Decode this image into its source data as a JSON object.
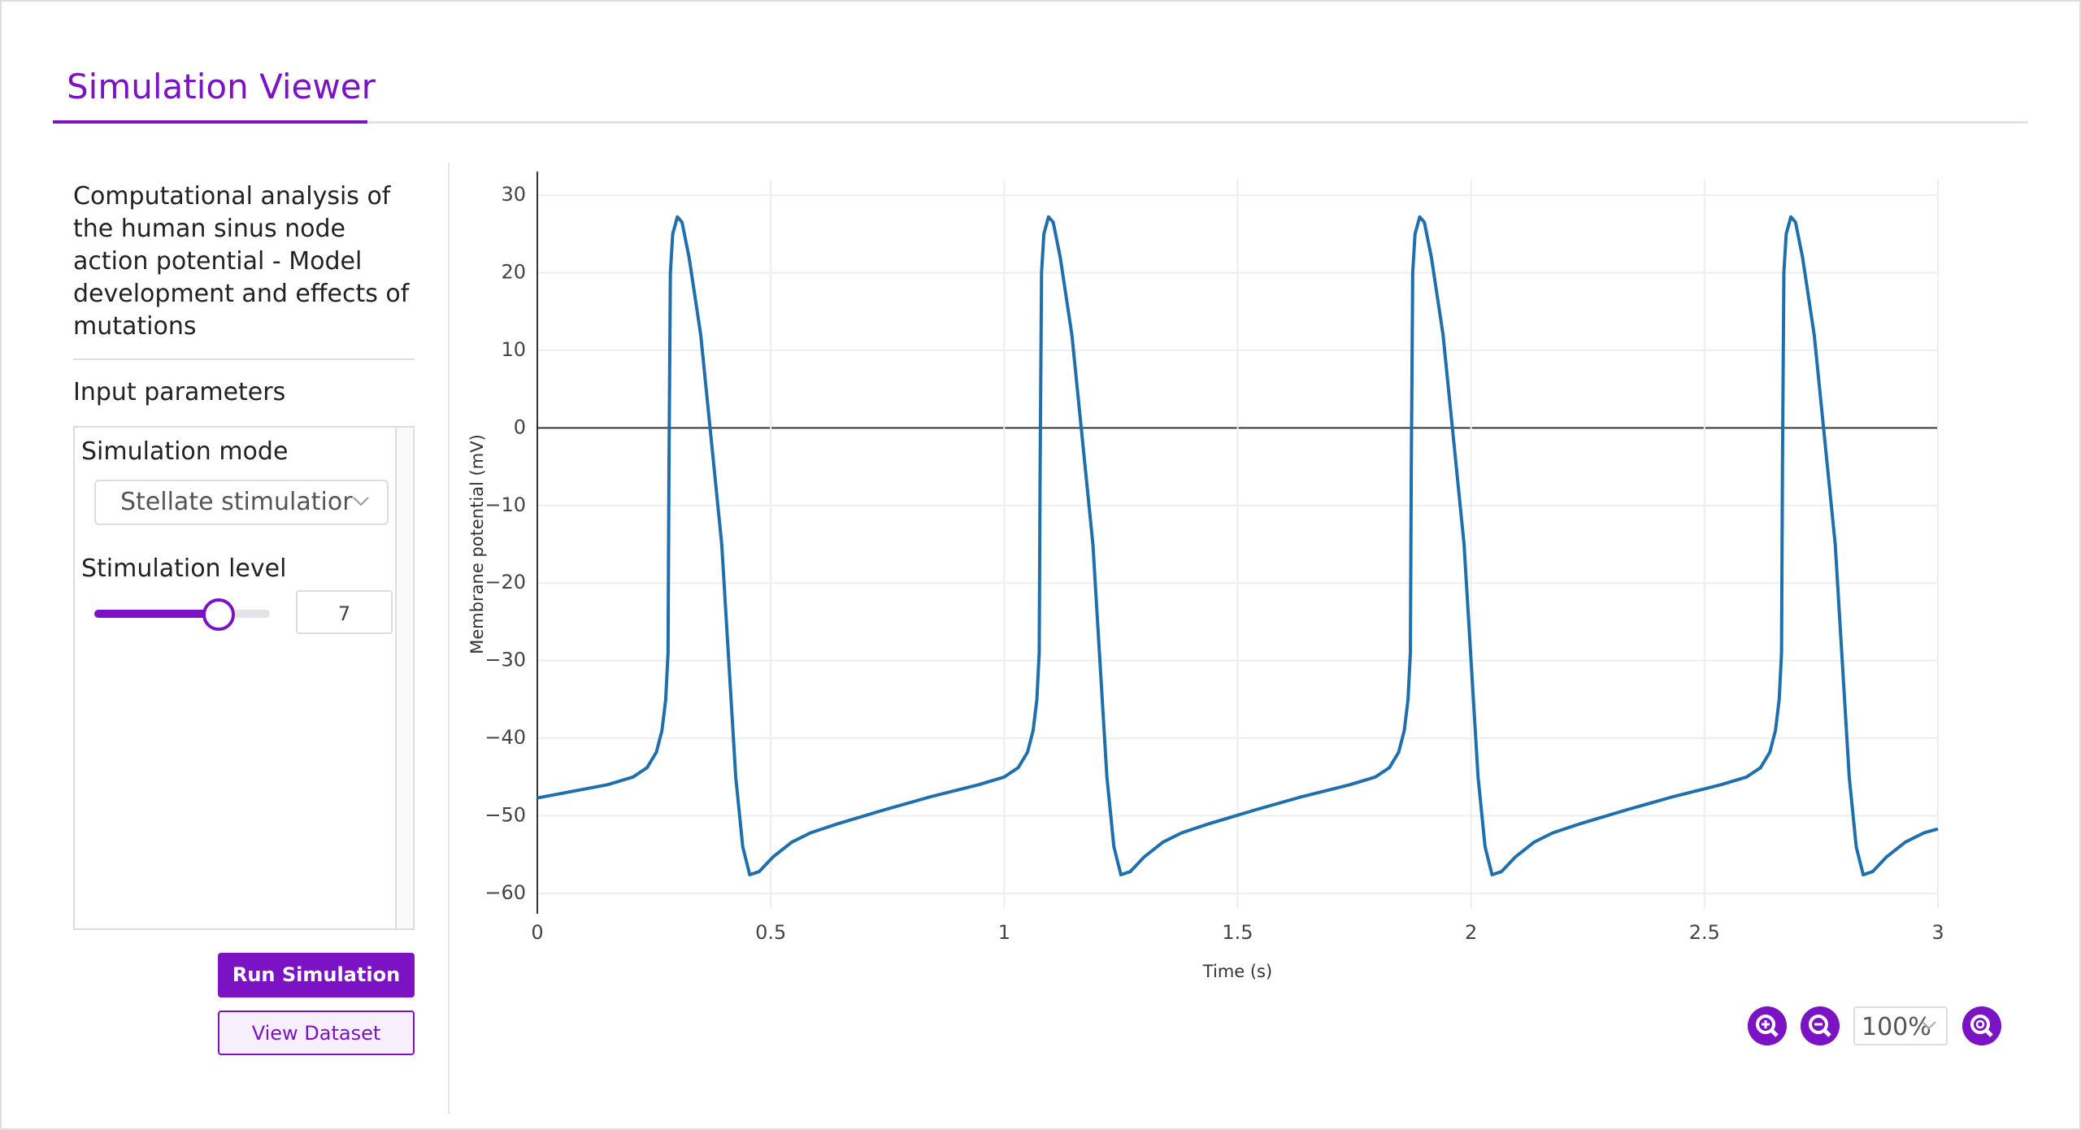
{
  "header": {
    "title": "Simulation Viewer"
  },
  "sidebar": {
    "description": "Computational analysis of the human sinus node action potential - Model development and effects of mutations",
    "section": "Input parameters",
    "mode_label": "Simulation mode",
    "mode_value": "Stellate stimulatior",
    "level_label": "Stimulation level",
    "level_value": "7",
    "run_button": "Run Simulation",
    "dataset_button": "View Dataset"
  },
  "zoom": {
    "level": "100%"
  },
  "chart_data": {
    "type": "line",
    "color": "#1f6fad",
    "xlabel": "Time (s)",
    "ylabel": "Membrane potential (mV)",
    "x": [
      0,
      0.15,
      0.205,
      0.235,
      0.255,
      0.267,
      0.275,
      0.28,
      0.282,
      0.285,
      0.29,
      0.3,
      0.31,
      0.325,
      0.35,
      0.37,
      0.395,
      0.41,
      0.425,
      0.44,
      0.455,
      0.475,
      0.505,
      0.545,
      0.585,
      0.645,
      0.745,
      0.845,
      0.945,
      1.0,
      1.03,
      1.05,
      1.062,
      1.07,
      1.075,
      1.077,
      1.08,
      1.085,
      1.095,
      1.105,
      1.12,
      1.145,
      1.165,
      1.19,
      1.205,
      1.22,
      1.235,
      1.25,
      1.27,
      1.3,
      1.34,
      1.38,
      1.44,
      1.54,
      1.64,
      1.74,
      1.795,
      1.825,
      1.845,
      1.857,
      1.865,
      1.87,
      1.872,
      1.875,
      1.88,
      1.89,
      1.9,
      1.915,
      1.94,
      1.96,
      1.985,
      2.0,
      2.015,
      2.03,
      2.045,
      2.065,
      2.095,
      2.135,
      2.175,
      2.235,
      2.335,
      2.435,
      2.535,
      2.59,
      2.62,
      2.64,
      2.652,
      2.66,
      2.665,
      2.667,
      2.67,
      2.675,
      2.685,
      2.695,
      2.71,
      2.735,
      2.755,
      2.78,
      2.795,
      2.81,
      2.825,
      2.84,
      2.86,
      2.89,
      2.93,
      2.97,
      3.0
    ],
    "values": [
      -47.7,
      -46,
      -45,
      -43.8,
      -41.8,
      -39,
      -35,
      -29,
      -5,
      20,
      25,
      27.2,
      26.5,
      22,
      12,
      0,
      -15,
      -30,
      -45,
      -54,
      -57.6,
      -57.2,
      -55.3,
      -53.4,
      -52.2,
      -51,
      -49.2,
      -47.5,
      -46,
      -45,
      -43.8,
      -41.8,
      -39,
      -35,
      -29,
      -5,
      20,
      25,
      27.2,
      26.5,
      22,
      12,
      0,
      -15,
      -30,
      -45,
      -54,
      -57.6,
      -57.2,
      -55.3,
      -53.4,
      -52.2,
      -51,
      -49.2,
      -47.5,
      -46,
      -45,
      -43.8,
      -41.8,
      -39,
      -35,
      -29,
      -5,
      20,
      25,
      27.2,
      26.5,
      22,
      12,
      0,
      -15,
      -30,
      -45,
      -54,
      -57.6,
      -57.2,
      -55.3,
      -53.4,
      -52.2,
      -51,
      -49.2,
      -47.5,
      -46,
      -45,
      -43.8,
      -41.8,
      -39,
      -35,
      -29,
      -5,
      20,
      25,
      27.2,
      26.5,
      22,
      12,
      0,
      -15,
      -30,
      -45,
      -54,
      -57.6,
      -57.2,
      -55.3,
      -53.4,
      -52.2,
      -51.7
    ],
    "xlim": [
      0,
      3
    ],
    "xticks": [
      0,
      0.5,
      1,
      1.5,
      2,
      2.5,
      3
    ],
    "ylim": [
      -62,
      32
    ],
    "yticks": [
      {
        "value": -60,
        "label": "−60"
      },
      {
        "value": -50,
        "label": "−50"
      },
      {
        "value": -40,
        "label": "−40"
      },
      {
        "value": -30,
        "label": "−30"
      },
      {
        "value": -20,
        "label": "−20"
      },
      {
        "value": -10,
        "label": "−10"
      },
      0,
      10,
      20,
      30
    ],
    "grid": true
  }
}
